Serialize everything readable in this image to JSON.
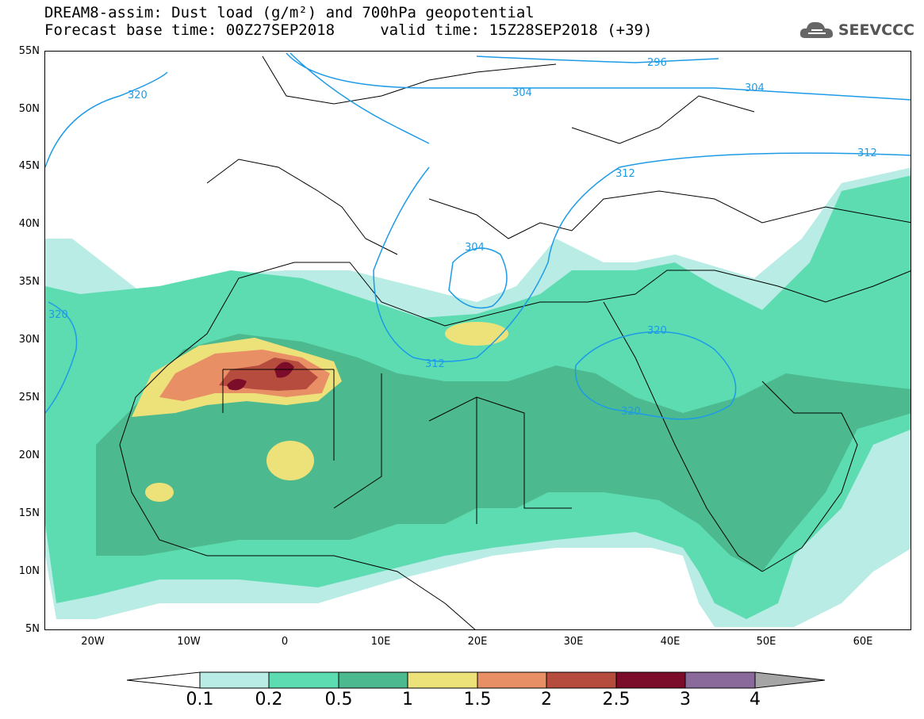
{
  "title": {
    "line1": "DREAM8-assim: Dust load (g/m²) and 700hPa geopotential",
    "line2": "Forecast base time: 00Z27SEP2018     valid time: 15Z28SEP2018 (+39)"
  },
  "logo": {
    "text": "SEEVCCC",
    "icon": "cloud-icon"
  },
  "axes": {
    "lat_labels": [
      "55N",
      "50N",
      "45N",
      "40N",
      "35N",
      "30N",
      "25N",
      "20N",
      "15N",
      "10N",
      "5N"
    ],
    "lon_labels": [
      "20W",
      "10W",
      "0",
      "10E",
      "20E",
      "30E",
      "40E",
      "50E",
      "60E"
    ]
  },
  "contours": [
    {
      "label": "296"
    },
    {
      "label": "304"
    },
    {
      "label": "304"
    },
    {
      "label": "312"
    },
    {
      "label": "312"
    },
    {
      "label": "312"
    },
    {
      "label": "320"
    },
    {
      "label": "320"
    },
    {
      "label": "320"
    },
    {
      "label": "320"
    },
    {
      "label": "304"
    }
  ],
  "colorbar": {
    "labels": [
      "0.1",
      "0.2",
      "0.5",
      "1",
      "1.5",
      "2",
      "2.5",
      "3",
      "4"
    ],
    "colors": [
      "#b8ece4",
      "#5ddcb2",
      "#4cb98f",
      "#ede27a",
      "#e98f66",
      "#b64c3e",
      "#7b0d2a",
      "#8a6a9b",
      "#a5a5a5"
    ]
  }
}
